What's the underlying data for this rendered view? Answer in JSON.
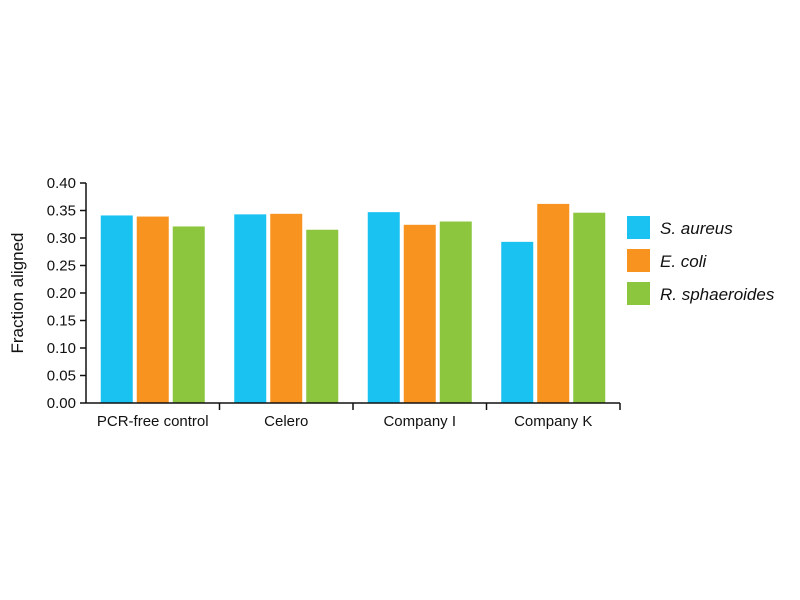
{
  "chart_data": {
    "type": "bar",
    "title": "",
    "xlabel": "",
    "ylabel": "Fraction aligned",
    "ylim": [
      0,
      0.4
    ],
    "yticks": [
      "0.00",
      "0.05",
      "0.10",
      "0.15",
      "0.20",
      "0.25",
      "0.30",
      "0.35",
      "0.40"
    ],
    "categories": [
      "PCR-free control",
      "Celero",
      "Company I",
      "Company K"
    ],
    "series": [
      {
        "name": "S. aureus",
        "color": "#1ac2f2",
        "values": [
          0.341,
          0.343,
          0.347,
          0.293
        ]
      },
      {
        "name": "E. coli",
        "color": "#f7931e",
        "values": [
          0.339,
          0.344,
          0.324,
          0.362
        ]
      },
      {
        "name": "R. sphaeroides",
        "color": "#8cc63f",
        "values": [
          0.321,
          0.315,
          0.33,
          0.346
        ]
      }
    ],
    "grid": false,
    "legend_position": "right"
  }
}
